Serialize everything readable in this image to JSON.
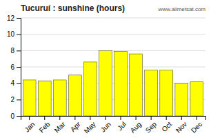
{
  "chart_data": {
    "type": "bar",
    "title": "Tucuruí : sunshine (hours)",
    "categories": [
      "Jan",
      "Feb",
      "Mar",
      "Apr",
      "May",
      "Jun",
      "Jul",
      "Aug",
      "Sep",
      "Oct",
      "Nov",
      "Dec"
    ],
    "values": [
      4.4,
      4.3,
      4.4,
      5.0,
      6.6,
      8.0,
      7.9,
      7.6,
      5.6,
      5.6,
      4.0,
      4.2
    ],
    "color": "#ffff00",
    "ylim": [
      0,
      12
    ],
    "yticks": [
      0,
      2,
      4,
      6,
      8,
      10,
      12
    ],
    "grid": true,
    "annotations": [
      "www.allmetsat.com"
    ]
  }
}
